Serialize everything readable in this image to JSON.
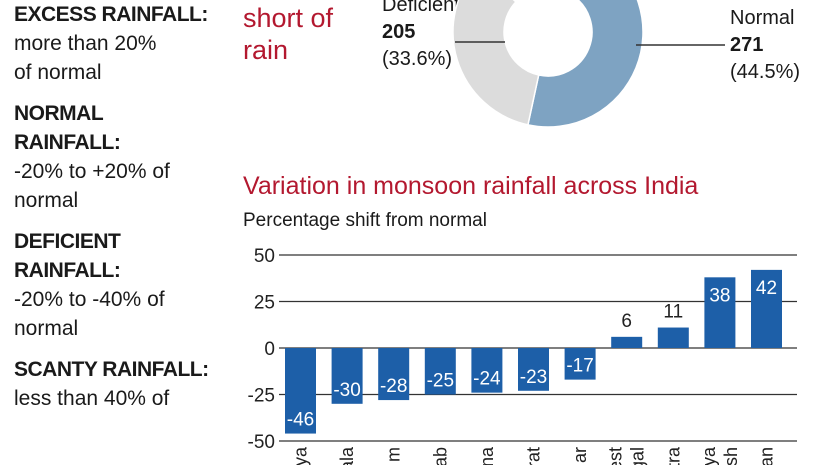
{
  "legend": [
    {
      "heading": "EXCESS RAINFALL:",
      "lines": [
        "more than 20%",
        "of normal"
      ]
    },
    {
      "heading": "NORMAL RAINFALL:",
      "lines": [
        "-20% to +20% of",
        "normal"
      ]
    },
    {
      "heading": "DEFICIENT RAINFALL:",
      "lines": [
        "-20% to -40% of",
        "normal"
      ]
    },
    {
      "heading": "SCANTY RAINFALL:",
      "lines": [
        "less than 40% of"
      ]
    }
  ],
  "colors": {
    "title_red": "#b3182f",
    "bar_blue": "#1d5fa8",
    "normal": "#7ea3c2",
    "deficient": "#dcdcdc",
    "dark_blue": "#1d5fa8"
  },
  "chart_data": [
    {
      "type": "pie",
      "title": "short of rain",
      "donut": true,
      "slices": [
        {
          "name": "Normal",
          "value": 271,
          "percent_label": "(44.5%)",
          "percent": 44.5,
          "color": "#7ea3c2"
        },
        {
          "name": "Deficient",
          "value": 205,
          "percent_label": "(33.6%)",
          "percent": 33.6,
          "color": "#dcdcdc"
        }
      ]
    },
    {
      "type": "bar",
      "title": "Variation in monsoon rainfall across India",
      "subtitle": "Percentage shift from normal",
      "ylim": [
        -50,
        50
      ],
      "yticks": [
        50,
        25,
        0,
        -25,
        -50
      ],
      "grid": true,
      "categories": [
        "ya",
        "ala",
        "m",
        "ab",
        "na",
        "rat",
        "ar",
        "est gal",
        "tra",
        "ya sh",
        "an"
      ],
      "values": [
        -46,
        -30,
        -28,
        -25,
        -24,
        -23,
        -17,
        6,
        11,
        38,
        42
      ]
    }
  ]
}
